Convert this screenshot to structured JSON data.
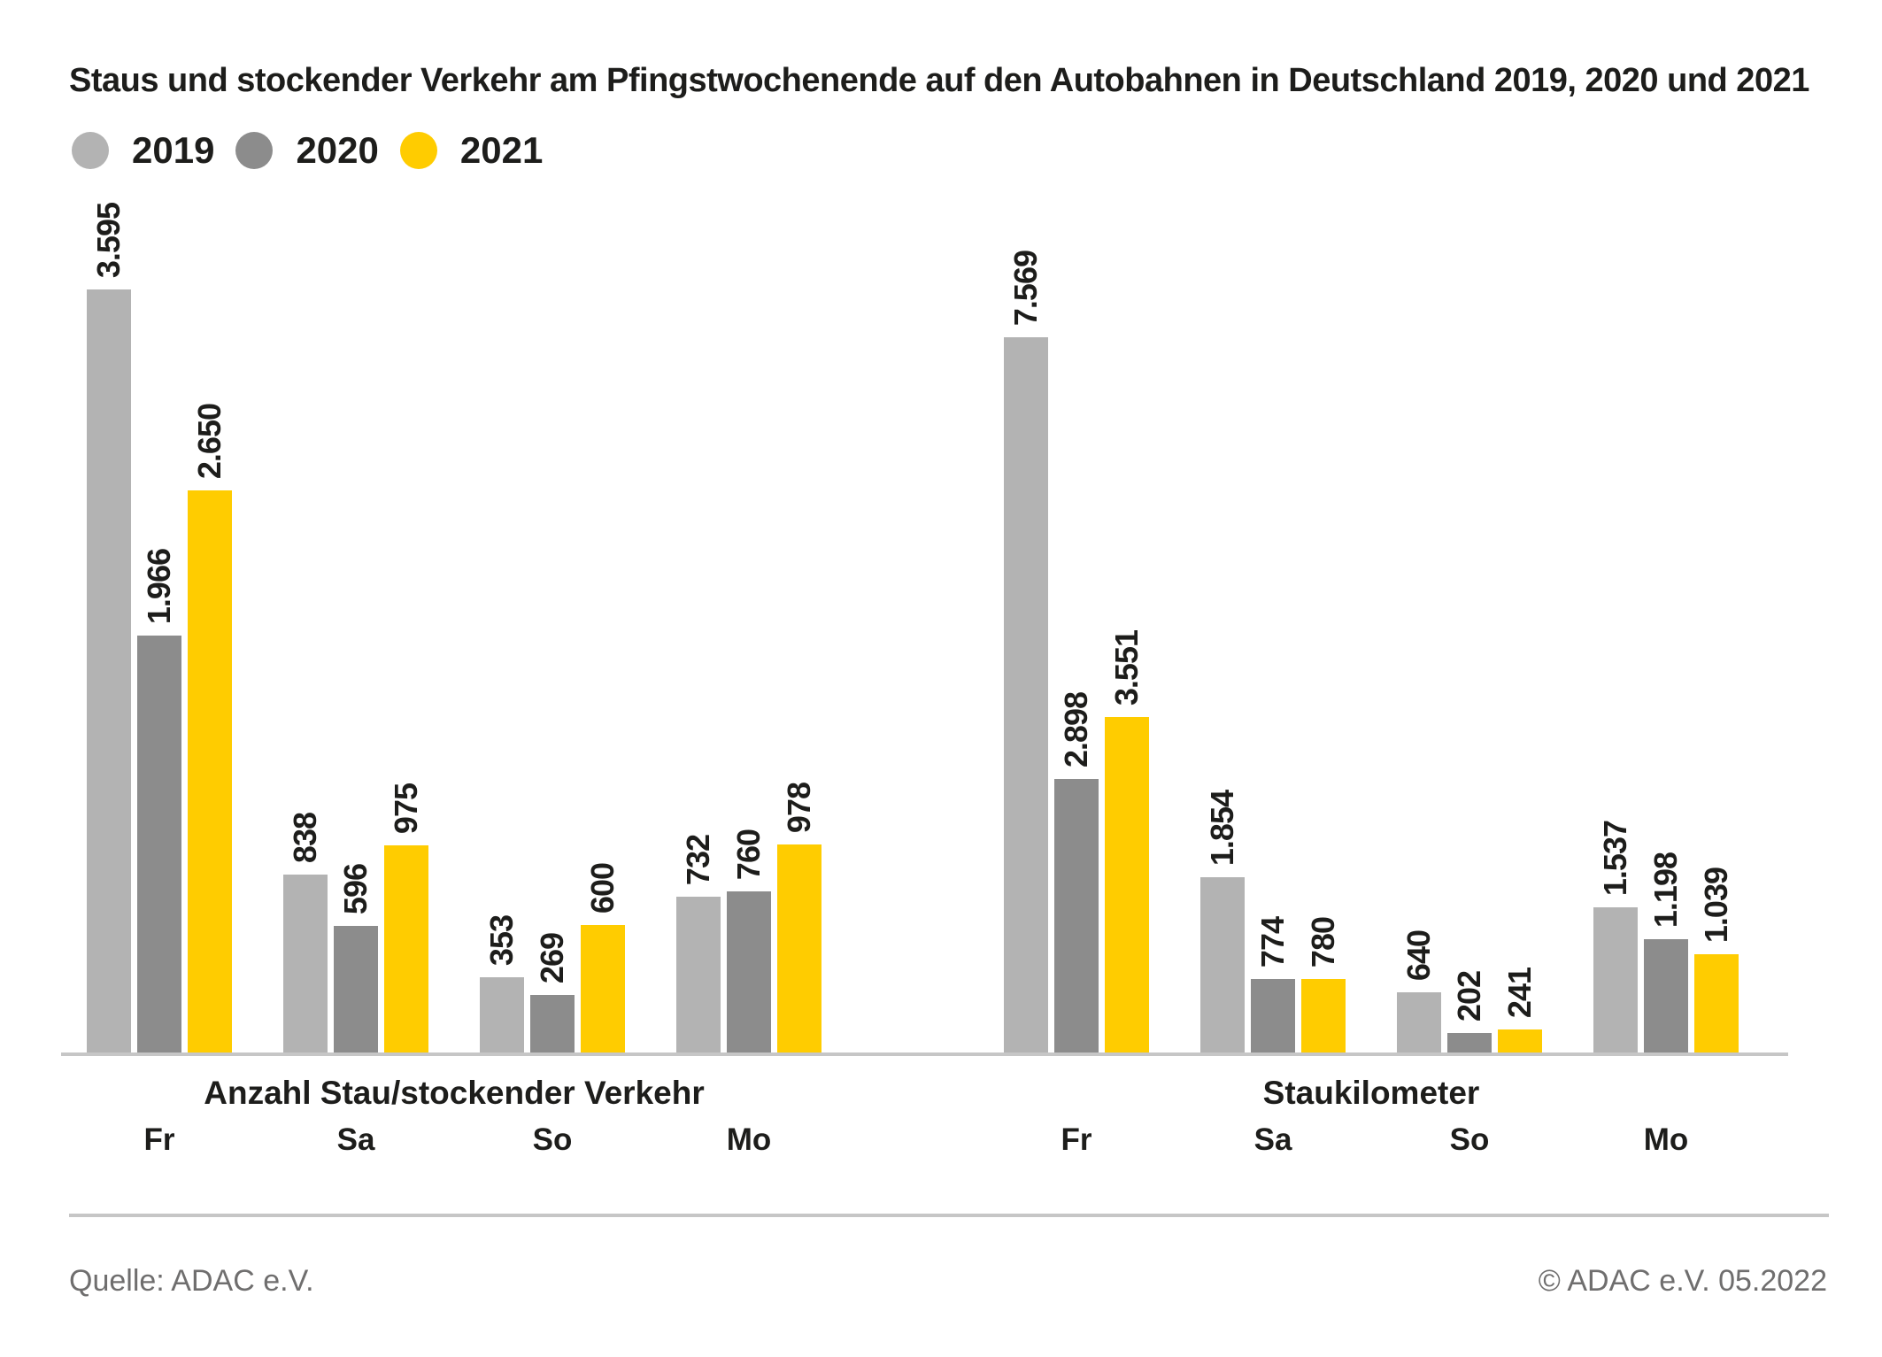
{
  "title": "Staus und stockender Verkehr am Pfingstwochenende auf den Autobahnen in Deutschland 2019, 2020 und 2021",
  "legend": {
    "items": [
      {
        "label": "2019",
        "color": "#b3b3b3"
      },
      {
        "label": "2020",
        "color": "#8c8c8c"
      },
      {
        "label": "2021",
        "color": "#ffcc00"
      }
    ]
  },
  "footer": {
    "source": "Quelle: ADAC e.V.",
    "copyright": "© ADAC e.V. 05.2022"
  },
  "chart_data": {
    "type": "bar",
    "grid": false,
    "legend_position": "top-left",
    "series_names": [
      "2019",
      "2020",
      "2021"
    ],
    "series_colors": [
      "#b3b3b3",
      "#8c8c8c",
      "#ffcc00"
    ],
    "groups": [
      {
        "title": "Anzahl Stau/stockender Verkehr",
        "categories": [
          "Fr",
          "Sa",
          "So",
          "Mo"
        ],
        "ymax": 3595,
        "series": [
          {
            "name": "2019",
            "values": [
              3595,
              838,
              353,
              732
            ],
            "labels": [
              "3.595",
              "838",
              "353",
              "732"
            ]
          },
          {
            "name": "2020",
            "values": [
              1966,
              596,
              269,
              760
            ],
            "labels": [
              "1.966",
              "596",
              "269",
              "760"
            ]
          },
          {
            "name": "2021",
            "values": [
              2650,
              975,
              600,
              978
            ],
            "labels": [
              "2.650",
              "975",
              "600",
              "978"
            ]
          }
        ]
      },
      {
        "title": "Staukilometer",
        "categories": [
          "Fr",
          "Sa",
          "So",
          "Mo"
        ],
        "ymax": 7569,
        "series": [
          {
            "name": "2019",
            "values": [
              7569,
              1854,
              640,
              1537
            ],
            "labels": [
              "7.569",
              "1.854",
              "640",
              "1.537"
            ]
          },
          {
            "name": "2020",
            "values": [
              2898,
              774,
              202,
              1198
            ],
            "labels": [
              "2.898",
              "774",
              "202",
              "1.198"
            ]
          },
          {
            "name": "2021",
            "values": [
              3551,
              780,
              241,
              1039
            ],
            "labels": [
              "3.551",
              "780",
              "241",
              "1.039"
            ]
          }
        ]
      }
    ]
  }
}
